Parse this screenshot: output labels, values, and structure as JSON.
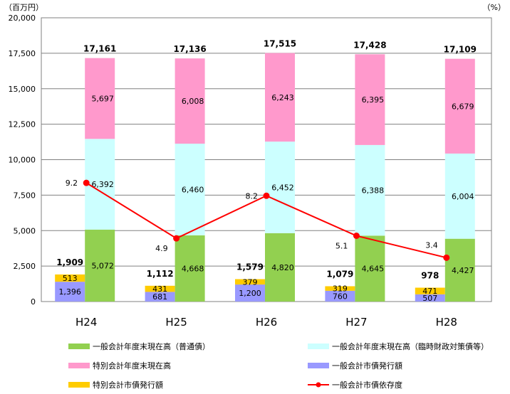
{
  "chart_data": {
    "type": "bar",
    "stacked": true,
    "left_unit": "（百万円）",
    "right_unit": "（%）",
    "categories": [
      "H24",
      "H25",
      "H26",
      "H27",
      "H28"
    ],
    "ylim": [
      0,
      20000
    ],
    "yticks": [
      0,
      2500,
      5000,
      7500,
      10000,
      12500,
      15000,
      17500,
      20000
    ],
    "ytick_labels": [
      "0",
      "2,500",
      "5,000",
      "7,500",
      "10,000",
      "12,500",
      "15,000",
      "17,500",
      "20,000"
    ],
    "grid": true,
    "legend_position": "bottom",
    "left_stack": {
      "series": [
        {
          "name": "一般会計市債発行額",
          "color": "#9999ff",
          "values": [
            1396,
            681,
            1200,
            760,
            507
          ],
          "labels": [
            "1,396",
            "681",
            "1,200",
            "760",
            "507"
          ]
        },
        {
          "name": "特別会計市債発行額",
          "color": "#ffcc00",
          "values": [
            513,
            431,
            379,
            319,
            471
          ],
          "labels": [
            "513",
            "431",
            "379",
            "319",
            "471"
          ]
        }
      ],
      "totals": [
        1909,
        1112,
        1579,
        1079,
        978
      ],
      "total_labels": [
        "1,909",
        "1,112",
        "1,579",
        "1,079",
        "978"
      ]
    },
    "right_stack": {
      "series": [
        {
          "name": "一般会計年度末現在高（普通債）",
          "color": "#92d050",
          "values": [
            5072,
            4668,
            4820,
            4645,
            4427
          ],
          "labels": [
            "5,072",
            "4,668",
            "4,820",
            "4,645",
            "4,427"
          ]
        },
        {
          "name": "一般会計年度末現在高（臨時財政対策債等）",
          "color": "#ccffff",
          "values": [
            6392,
            6460,
            6452,
            6388,
            6004
          ],
          "labels": [
            "6,392",
            "6,460",
            "6,452",
            "6,388",
            "6,004"
          ]
        },
        {
          "name": "特別会計年度末現在高",
          "color": "#ff99cc",
          "values": [
            5697,
            6008,
            6243,
            6395,
            6679
          ],
          "labels": [
            "5,697",
            "6,008",
            "6,243",
            "6,395",
            "6,679"
          ]
        }
      ],
      "totals": [
        17161,
        17136,
        17515,
        17428,
        17109
      ],
      "total_labels": [
        "17,161",
        "17,136",
        "17,515",
        "17,428",
        "17,109"
      ]
    },
    "line": {
      "name": "一般会計市債依存度",
      "color": "#ff0000",
      "values": [
        9.2,
        4.9,
        8.2,
        5.1,
        3.4
      ],
      "labels": [
        "9.2",
        "4.9",
        "8.2",
        "5.1",
        "3.4"
      ],
      "axis_max": 22
    },
    "legend": [
      {
        "name": "一般会計年度末現在高（普通債）",
        "color": "#92d050",
        "kind": "bar"
      },
      {
        "name": "一般会計年度末現在高（臨時財政対策債等）",
        "color": "#ccffff",
        "kind": "bar"
      },
      {
        "name": "特別会計年度末現在高",
        "color": "#ff99cc",
        "kind": "bar"
      },
      {
        "name": "一般会計市債発行額",
        "color": "#9999ff",
        "kind": "bar"
      },
      {
        "name": "特別会計市債発行額",
        "color": "#ffcc00",
        "kind": "bar"
      },
      {
        "name": "一般会計市債依存度",
        "color": "#ff0000",
        "kind": "line"
      }
    ]
  }
}
